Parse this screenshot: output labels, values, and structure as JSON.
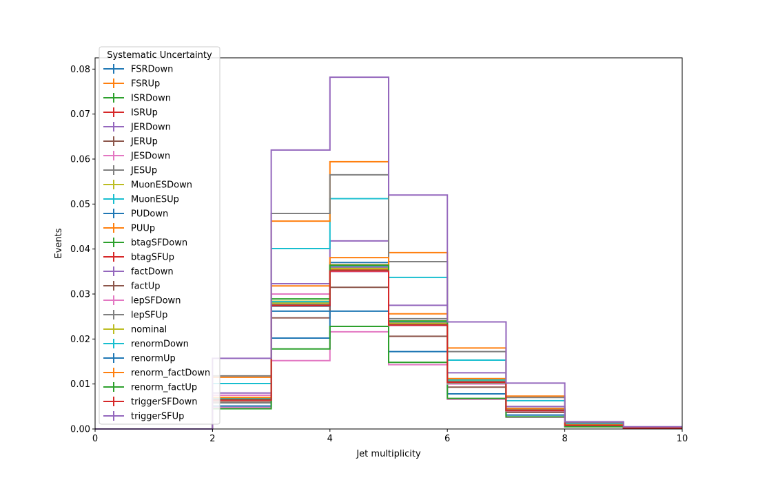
{
  "chart_data": {
    "type": "line",
    "drawstyle": "step",
    "title": "",
    "xlabel": "Jet multiplicity",
    "ylabel": "Events",
    "xlim": [
      0,
      10
    ],
    "ylim": [
      0,
      0.0825
    ],
    "xticks": [
      0,
      2,
      4,
      6,
      8,
      10
    ],
    "yticks": [
      0.0,
      0.01,
      0.02,
      0.03,
      0.04,
      0.05,
      0.06,
      0.07,
      0.08
    ],
    "ytick_labels": [
      "0.00",
      "0.01",
      "0.02",
      "0.03",
      "0.04",
      "0.05",
      "0.06",
      "0.07",
      "0.08"
    ],
    "bin_edges": [
      0,
      1,
      2,
      3,
      4,
      5,
      6,
      7,
      8,
      9,
      10
    ],
    "grid": false,
    "legend": {
      "title": "Systematic Uncertainty",
      "placement": "upper-left"
    },
    "series": [
      {
        "name": "FSRDown",
        "color": "#1f77b4",
        "values": [
          0,
          0,
          0.0065,
          0.0262,
          0.0355,
          0.0232,
          0.0105,
          0.0042,
          0.0008,
          0.0002
        ]
      },
      {
        "name": "FSRUp",
        "color": "#ff7f0e",
        "values": [
          0,
          0,
          0.0068,
          0.0282,
          0.0365,
          0.024,
          0.011,
          0.0044,
          0.0009,
          0.0002
        ]
      },
      {
        "name": "ISRDown",
        "color": "#2ca02c",
        "values": [
          0,
          0,
          0.0066,
          0.028,
          0.036,
          0.0236,
          0.0108,
          0.0043,
          0.0008,
          0.0002
        ]
      },
      {
        "name": "ISRUp",
        "color": "#d62728",
        "values": [
          0,
          0,
          0.0067,
          0.0281,
          0.0362,
          0.0238,
          0.0109,
          0.0043,
          0.0008,
          0.0002
        ]
      },
      {
        "name": "JERDown",
        "color": "#9467bd",
        "values": [
          0,
          0,
          0.008,
          0.0323,
          0.0418,
          0.0275,
          0.0125,
          0.005,
          0.001,
          0.0002
        ]
      },
      {
        "name": "JERUp",
        "color": "#8c564b",
        "values": [
          0,
          0,
          0.006,
          0.0247,
          0.0315,
          0.0206,
          0.0093,
          0.0037,
          0.0007,
          0.0001
        ]
      },
      {
        "name": "JESDown",
        "color": "#e377c2",
        "values": [
          0,
          0,
          0.0048,
          0.0152,
          0.0216,
          0.0143,
          0.0066,
          0.0026,
          0.0005,
          0.0001
        ]
      },
      {
        "name": "JESUp",
        "color": "#7f7f7f",
        "values": [
          0,
          0,
          0.0058,
          0.0282,
          0.035,
          0.0245,
          0.011,
          0.0046,
          0.0009,
          0.0002
        ]
      },
      {
        "name": "MuonESDown",
        "color": "#bcbd22",
        "values": [
          0,
          0,
          0.007,
          0.0284,
          0.0358,
          0.024,
          0.0112,
          0.0045,
          0.0009,
          0.0002
        ]
      },
      {
        "name": "MuonESUp",
        "color": "#17becf",
        "values": [
          0,
          0,
          0.0101,
          0.0401,
          0.0512,
          0.0337,
          0.0153,
          0.0063,
          0.0012,
          0.0003
        ]
      },
      {
        "name": "PUDown",
        "color": "#1f77b4",
        "values": [
          0,
          0,
          0.0051,
          0.0202,
          0.0262,
          0.0172,
          0.0078,
          0.0031,
          0.0006,
          0.0001
        ]
      },
      {
        "name": "PUUp",
        "color": "#ff7f0e",
        "values": [
          0,
          0,
          0.0115,
          0.0462,
          0.0594,
          0.0392,
          0.018,
          0.0073,
          0.0014,
          0.0003
        ]
      },
      {
        "name": "btagSFDown",
        "color": "#2ca02c",
        "values": [
          0,
          0,
          0.0045,
          0.0178,
          0.0228,
          0.0148,
          0.0068,
          0.0027,
          0.0005,
          0.0001
        ]
      },
      {
        "name": "btagSFUp",
        "color": "#d62728",
        "values": [
          0,
          0,
          0.0068,
          0.0276,
          0.0354,
          0.0233,
          0.0106,
          0.0043,
          0.0008,
          0.0002
        ]
      },
      {
        "name": "factDown",
        "color": "#9467bd",
        "values": [
          0,
          0,
          0.0067,
          0.028,
          0.036,
          0.0237,
          0.0108,
          0.0043,
          0.0008,
          0.0002
        ]
      },
      {
        "name": "factUp",
        "color": "#8c564b",
        "values": [
          0,
          0,
          0.0068,
          0.0276,
          0.0352,
          0.0232,
          0.0106,
          0.0042,
          0.0008,
          0.0002
        ]
      },
      {
        "name": "lepSFDown",
        "color": "#e377c2",
        "values": [
          0,
          0,
          0.0075,
          0.03,
          0.035,
          0.023,
          0.01,
          0.004,
          0.0008,
          0.0002
        ]
      },
      {
        "name": "lepSFUp",
        "color": "#7f7f7f",
        "values": [
          0,
          0,
          0.0118,
          0.0479,
          0.0565,
          0.0372,
          0.0172,
          0.007,
          0.0014,
          0.0003
        ]
      },
      {
        "name": "nominal",
        "color": "#bcbd22",
        "values": [
          0,
          0,
          0.0068,
          0.028,
          0.0356,
          0.0235,
          0.0107,
          0.0043,
          0.0008,
          0.0002
        ]
      },
      {
        "name": "renormDown",
        "color": "#17becf",
        "values": [
          0,
          0,
          0.0069,
          0.0283,
          0.0363,
          0.0239,
          0.0109,
          0.0044,
          0.0008,
          0.0002
        ]
      },
      {
        "name": "renormUp",
        "color": "#1f77b4",
        "values": [
          0,
          0,
          0.0066,
          0.0273,
          0.037,
          0.0231,
          0.0105,
          0.0042,
          0.0008,
          0.0002
        ]
      },
      {
        "name": "renorm_factDown",
        "color": "#ff7f0e",
        "values": [
          0,
          0,
          0.007,
          0.0318,
          0.0381,
          0.0256,
          0.0112,
          0.0045,
          0.0009,
          0.0002
        ]
      },
      {
        "name": "renorm_factUp",
        "color": "#2ca02c",
        "values": [
          0,
          0,
          0.0065,
          0.0289,
          0.0364,
          0.024,
          0.0103,
          0.0041,
          0.0008,
          0.0002
        ]
      },
      {
        "name": "triggerSFDown",
        "color": "#d62728",
        "values": [
          0,
          0,
          0.0064,
          0.0274,
          0.0351,
          0.0231,
          0.0104,
          0.0041,
          0.0008,
          0.0002
        ]
      },
      {
        "name": "triggerSFUp",
        "color": "#9467bd",
        "values": [
          0,
          0,
          0.0157,
          0.062,
          0.0782,
          0.052,
          0.0238,
          0.0102,
          0.0016,
          0.0005
        ]
      }
    ]
  }
}
